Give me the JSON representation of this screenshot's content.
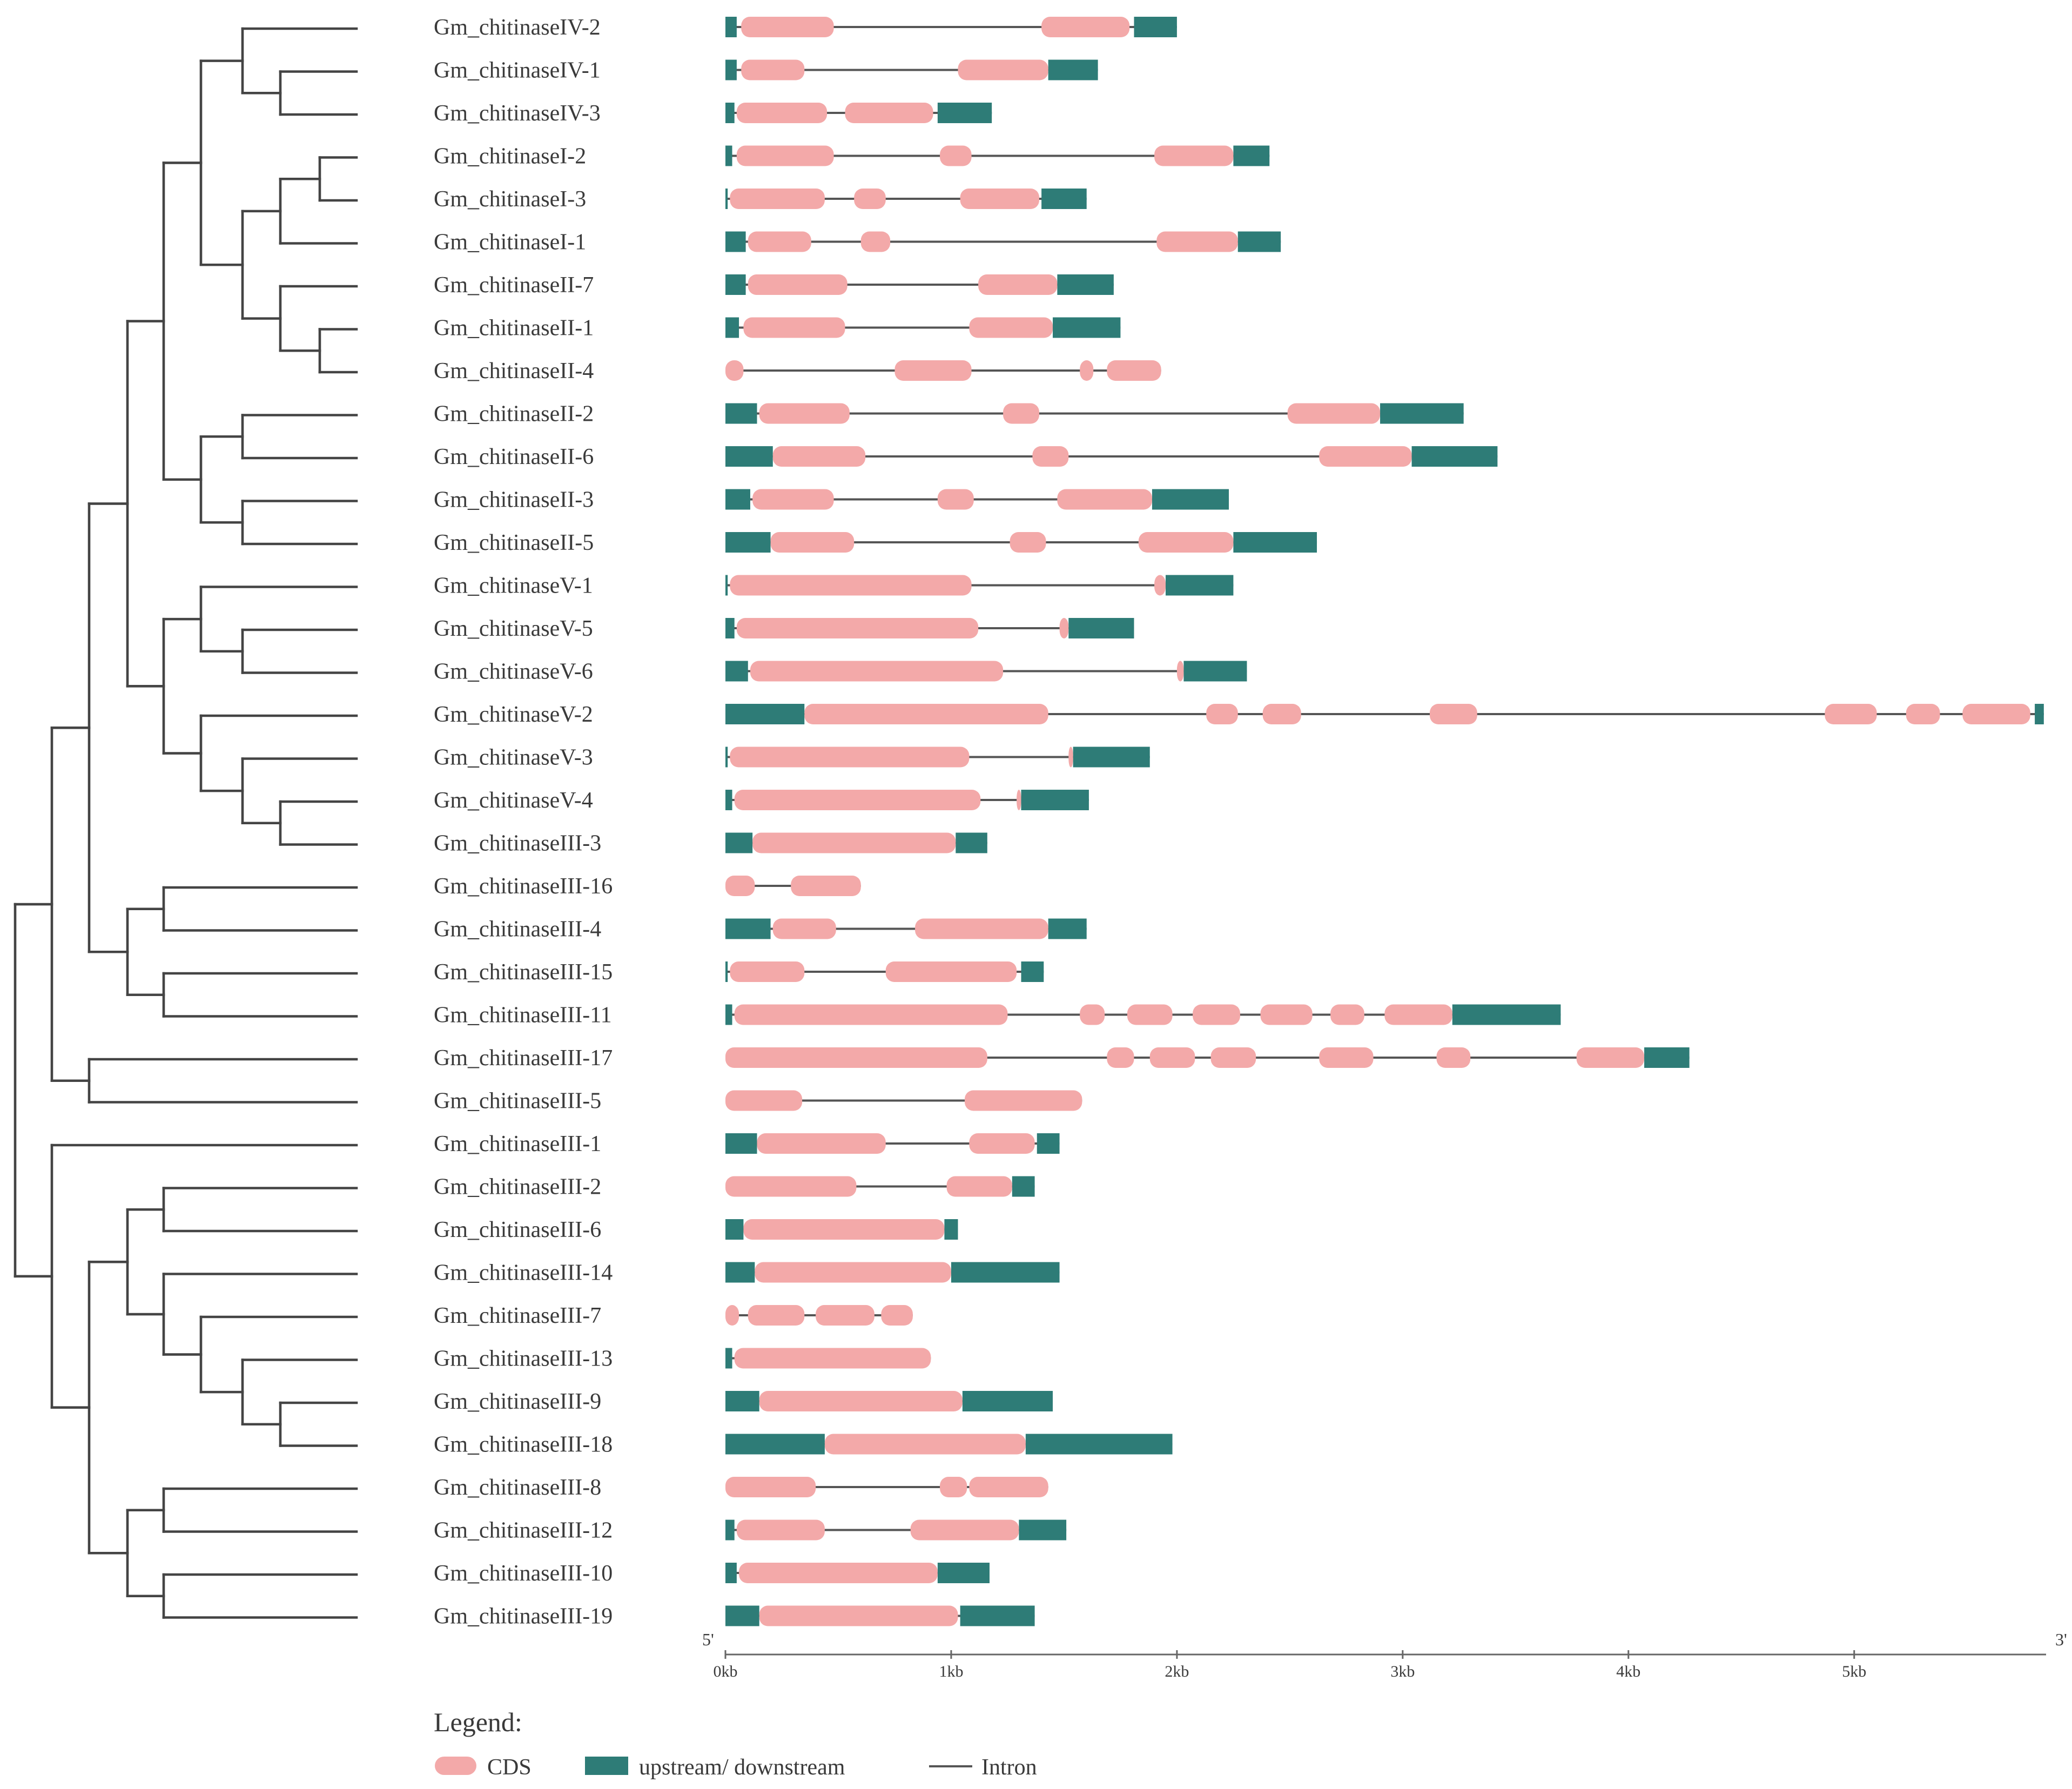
{
  "colors": {
    "cds": "#F3A9A9",
    "utr": "#2E7C77",
    "intron": "#555555",
    "tree": "#444444",
    "text": "#3a3a3a"
  },
  "genes": [
    {
      "name": "Gm_chitinaseIV-2",
      "utr5": [
        0,
        0.05
      ],
      "cds": [
        [
          0.07,
          0.48
        ],
        [
          1.4,
          1.79
        ]
      ],
      "utr3": [
        1.81,
        2.0
      ]
    },
    {
      "name": "Gm_chitinaseIV-1",
      "utr5": [
        0,
        0.05
      ],
      "cds": [
        [
          0.07,
          0.35
        ],
        [
          1.03,
          1.43
        ]
      ],
      "utr3": [
        1.43,
        1.65
      ]
    },
    {
      "name": "Gm_chitinaseIV-3",
      "utr5": [
        0,
        0.04
      ],
      "cds": [
        [
          0.05,
          0.45
        ],
        [
          0.53,
          0.92
        ]
      ],
      "utr3": [
        0.94,
        1.18
      ]
    },
    {
      "name": "Gm_chitinaseI-2",
      "utr5": [
        0,
        0.03
      ],
      "cds": [
        [
          0.05,
          0.48
        ],
        [
          0.95,
          1.09
        ],
        [
          1.9,
          2.25
        ]
      ],
      "utr3": [
        2.25,
        2.41
      ]
    },
    {
      "name": "Gm_chitinaseI-3",
      "utr5": [
        0,
        0.01
      ],
      "cds": [
        [
          0.02,
          0.44
        ],
        [
          0.57,
          0.71
        ],
        [
          1.04,
          1.39
        ]
      ],
      "utr3": [
        1.4,
        1.6
      ]
    },
    {
      "name": "Gm_chitinaseI-1",
      "utr5": [
        0,
        0.09
      ],
      "cds": [
        [
          0.1,
          0.38
        ],
        [
          0.6,
          0.73
        ],
        [
          1.91,
          2.27
        ]
      ],
      "utr3": [
        2.27,
        2.46
      ]
    },
    {
      "name": "Gm_chitinaseII-7",
      "utr5": [
        0,
        0.09
      ],
      "cds": [
        [
          0.1,
          0.54
        ],
        [
          1.12,
          1.47
        ]
      ],
      "utr3": [
        1.47,
        1.72
      ]
    },
    {
      "name": "Gm_chitinaseII-1",
      "utr5": [
        0,
        0.06
      ],
      "cds": [
        [
          0.08,
          0.53
        ],
        [
          1.08,
          1.45
        ]
      ],
      "utr3": [
        1.45,
        1.75
      ]
    },
    {
      "name": "Gm_chitinaseII-4",
      "utr5": null,
      "cds": [
        [
          0.0,
          0.08
        ],
        [
          0.75,
          1.09
        ],
        [
          1.57,
          1.63
        ],
        [
          1.69,
          1.93
        ]
      ],
      "utr3": null
    },
    {
      "name": "Gm_chitinaseII-2",
      "utr5": [
        0,
        0.14
      ],
      "cds": [
        [
          0.15,
          0.55
        ],
        [
          1.23,
          1.39
        ],
        [
          2.49,
          2.9
        ]
      ],
      "utr3": [
        2.9,
        3.27
      ]
    },
    {
      "name": "Gm_chitinaseII-6",
      "utr5": [
        0,
        0.21
      ],
      "cds": [
        [
          0.21,
          0.62
        ],
        [
          1.36,
          1.52
        ],
        [
          2.63,
          3.04
        ]
      ],
      "utr3": [
        3.04,
        3.42
      ]
    },
    {
      "name": "Gm_chitinaseII-3",
      "utr5": [
        0,
        0.11
      ],
      "cds": [
        [
          0.12,
          0.48
        ],
        [
          0.94,
          1.1
        ],
        [
          1.47,
          1.89
        ]
      ],
      "utr3": [
        1.89,
        2.23
      ]
    },
    {
      "name": "Gm_chitinaseII-5",
      "utr5": [
        0,
        0.2
      ],
      "cds": [
        [
          0.2,
          0.57
        ],
        [
          1.26,
          1.42
        ],
        [
          1.83,
          2.25
        ]
      ],
      "utr3": [
        2.25,
        2.62
      ]
    },
    {
      "name": "Gm_chitinaseV-1",
      "utr5": [
        0,
        0.01
      ],
      "cds": [
        [
          0.02,
          1.09
        ],
        [
          1.9,
          1.95
        ]
      ],
      "utr3": [
        1.95,
        2.25
      ]
    },
    {
      "name": "Gm_chitinaseV-5",
      "utr5": [
        0,
        0.04
      ],
      "cds": [
        [
          0.05,
          1.12
        ],
        [
          1.48,
          1.52
        ]
      ],
      "utr3": [
        1.52,
        1.81
      ]
    },
    {
      "name": "Gm_chitinaseV-6",
      "utr5": [
        0,
        0.1
      ],
      "cds": [
        [
          0.11,
          1.23
        ],
        [
          2.0,
          2.03
        ]
      ],
      "utr3": [
        2.03,
        2.31
      ]
    },
    {
      "name": "Gm_chitinaseV-2",
      "utr5": [
        0,
        0.35
      ],
      "cds": [
        [
          0.35,
          1.43
        ],
        [
          2.13,
          2.27
        ],
        [
          2.38,
          2.55
        ],
        [
          3.12,
          3.33
        ],
        [
          4.87,
          5.1
        ],
        [
          5.23,
          5.38
        ],
        [
          5.48,
          5.78
        ]
      ],
      "utr3": [
        5.8,
        5.84
      ]
    },
    {
      "name": "Gm_chitinaseV-3",
      "utr5": [
        0,
        0.01
      ],
      "cds": [
        [
          0.02,
          1.08
        ],
        [
          1.52,
          1.54
        ]
      ],
      "utr3": [
        1.54,
        1.88
      ]
    },
    {
      "name": "Gm_chitinaseV-4",
      "utr5": [
        0,
        0.03
      ],
      "cds": [
        [
          0.04,
          1.13
        ],
        [
          1.29,
          1.31
        ]
      ],
      "utr3": [
        1.31,
        1.61
      ]
    },
    {
      "name": "Gm_chitinaseIII-3",
      "utr5": [
        0,
        0.12
      ],
      "cds": [
        [
          0.12,
          1.02
        ]
      ],
      "utr3": [
        1.02,
        1.16
      ]
    },
    {
      "name": "Gm_chitinaseIII-16",
      "utr5": null,
      "cds": [
        [
          0.0,
          0.13
        ],
        [
          0.29,
          0.6
        ]
      ],
      "utr3": null
    },
    {
      "name": "Gm_chitinaseIII-4",
      "utr5": [
        0,
        0.2
      ],
      "cds": [
        [
          0.21,
          0.49
        ],
        [
          0.84,
          1.43
        ]
      ],
      "utr3": [
        1.43,
        1.6
      ]
    },
    {
      "name": "Gm_chitinaseIII-15",
      "utr5": [
        0,
        0.01
      ],
      "cds": [
        [
          0.02,
          0.35
        ],
        [
          0.71,
          1.29
        ]
      ],
      "utr3": [
        1.31,
        1.41
      ]
    },
    {
      "name": "Gm_chitinaseIII-11",
      "utr5": [
        0,
        0.03
      ],
      "cds": [
        [
          0.04,
          1.25
        ],
        [
          1.57,
          1.68
        ],
        [
          1.78,
          1.98
        ],
        [
          2.07,
          2.28
        ],
        [
          2.37,
          2.6
        ],
        [
          2.68,
          2.83
        ],
        [
          2.92,
          3.22
        ]
      ],
      "utr3": [
        3.22,
        3.7
      ]
    },
    {
      "name": "Gm_chitinaseIII-17",
      "utr5": null,
      "cds": [
        [
          0.0,
          1.16
        ],
        [
          1.69,
          1.81
        ],
        [
          1.88,
          2.08
        ],
        [
          2.15,
          2.35
        ],
        [
          2.63,
          2.87
        ],
        [
          3.15,
          3.3
        ],
        [
          3.77,
          4.07
        ]
      ],
      "utr3": [
        4.07,
        4.27
      ]
    },
    {
      "name": "Gm_chitinaseIII-5",
      "utr5": null,
      "cds": [
        [
          0.0,
          0.34
        ],
        [
          1.06,
          1.58
        ]
      ],
      "utr3": null
    },
    {
      "name": "Gm_chitinaseIII-1",
      "utr5": [
        0,
        0.14
      ],
      "cds": [
        [
          0.14,
          0.71
        ],
        [
          1.08,
          1.37
        ]
      ],
      "utr3": [
        1.38,
        1.48
      ]
    },
    {
      "name": "Gm_chitinaseIII-2",
      "utr5": null,
      "cds": [
        [
          0.0,
          0.58
        ],
        [
          0.98,
          1.27
        ]
      ],
      "utr3": [
        1.27,
        1.37
      ]
    },
    {
      "name": "Gm_chitinaseIII-6",
      "utr5": [
        0,
        0.08
      ],
      "cds": [
        [
          0.08,
          0.97
        ]
      ],
      "utr3": [
        0.97,
        1.03
      ]
    },
    {
      "name": "Gm_chitinaseIII-14",
      "utr5": [
        0,
        0.13
      ],
      "cds": [
        [
          0.13,
          1.0
        ]
      ],
      "utr3": [
        1.0,
        1.48
      ]
    },
    {
      "name": "Gm_chitinaseIII-7",
      "utr5": null,
      "cds": [
        [
          0.0,
          0.06
        ],
        [
          0.1,
          0.35
        ],
        [
          0.4,
          0.66
        ],
        [
          0.69,
          0.83
        ]
      ],
      "utr3": null
    },
    {
      "name": "Gm_chitinaseIII-13",
      "utr5": [
        0,
        0.03
      ],
      "cds": [
        [
          0.04,
          0.91
        ]
      ],
      "utr3": null
    },
    {
      "name": "Gm_chitinaseIII-9",
      "utr5": [
        0,
        0.15
      ],
      "cds": [
        [
          0.15,
          1.05
        ]
      ],
      "utr3": [
        1.05,
        1.45
      ]
    },
    {
      "name": "Gm_chitinaseIII-18",
      "utr5": [
        0,
        0.44
      ],
      "cds": [
        [
          0.44,
          1.33
        ]
      ],
      "utr3": [
        1.33,
        1.98
      ]
    },
    {
      "name": "Gm_chitinaseIII-8",
      "utr5": null,
      "cds": [
        [
          0.0,
          0.4
        ],
        [
          0.95,
          1.07
        ],
        [
          1.08,
          1.43
        ]
      ],
      "utr3": null
    },
    {
      "name": "Gm_chitinaseIII-12",
      "utr5": [
        0,
        0.04
      ],
      "cds": [
        [
          0.05,
          0.44
        ],
        [
          0.82,
          1.3
        ]
      ],
      "utr3": [
        1.3,
        1.51
      ]
    },
    {
      "name": "Gm_chitinaseIII-10",
      "utr5": [
        0,
        0.05
      ],
      "cds": [
        [
          0.06,
          0.94
        ]
      ],
      "utr3": [
        0.94,
        1.17
      ]
    },
    {
      "name": "Gm_chitinaseIII-19",
      "utr5": [
        0,
        0.15
      ],
      "cds": [
        [
          0.15,
          1.03
        ]
      ],
      "utr3": [
        1.04,
        1.37
      ]
    }
  ],
  "tree": {
    "children": [
      {
        "children": [
          {
            "children": [
              {
                "children": [
                  {
                    "children": [
                      {
                        "children": [
                          {
                            "children": [
                              {
                                "leaf": 0
                              },
                              {
                                "children": [
                                  {
                                    "leaf": 1
                                  },
                                  {
                                    "leaf": 2
                                  }
                                ]
                              }
                            ]
                          },
                          {
                            "children": [
                              {
                                "children": [
                                  {
                                    "children": [
                                      {
                                        "leaf": 3
                                      },
                                      {
                                        "leaf": 4
                                      }
                                    ]
                                  },
                                  {
                                    "leaf": 5
                                  }
                                ]
                              },
                              {
                                "children": [
                                  {
                                    "leaf": 6
                                  },
                                  {
                                    "children": [
                                      {
                                        "leaf": 7
                                      },
                                      {
                                        "leaf": 8
                                      }
                                    ]
                                  }
                                ]
                              }
                            ]
                          }
                        ]
                      },
                      {
                        "children": [
                          {
                            "children": [
                              {
                                "leaf": 9
                              },
                              {
                                "leaf": 10
                              }
                            ]
                          },
                          {
                            "children": [
                              {
                                "leaf": 11
                              },
                              {
                                "leaf": 12
                              }
                            ]
                          }
                        ]
                      }
                    ]
                  },
                  {
                    "children": [
                      {
                        "children": [
                          {
                            "leaf": 13
                          },
                          {
                            "children": [
                              {
                                "leaf": 14
                              },
                              {
                                "leaf": 15
                              }
                            ]
                          }
                        ]
                      },
                      {
                        "children": [
                          {
                            "leaf": 16
                          },
                          {
                            "children": [
                              {
                                "leaf": 17
                              },
                              {
                                "children": [
                                  {
                                    "leaf": 18
                                  },
                                  {
                                    "leaf": 19
                                  }
                                ]
                              }
                            ]
                          }
                        ]
                      }
                    ]
                  }
                ]
              },
              {
                "children": [
                  {
                    "children": [
                      {
                        "leaf": 20
                      },
                      {
                        "leaf": 21
                      }
                    ]
                  },
                  {
                    "children": [
                      {
                        "leaf": 22
                      },
                      {
                        "leaf": 23
                      }
                    ]
                  }
                ]
              }
            ]
          },
          {
            "children": [
              {
                "leaf": 24
              },
              {
                "leaf": 25
              }
            ]
          }
        ]
      },
      {
        "children": [
          {
            "leaf": 26
          },
          {
            "children": [
              {
                "children": [
                  {
                    "children": [
                      {
                        "leaf": 27
                      },
                      {
                        "leaf": 28
                      }
                    ]
                  },
                  {
                    "children": [
                      {
                        "leaf": 29
                      },
                      {
                        "children": [
                          {
                            "leaf": 30
                          },
                          {
                            "children": [
                              {
                                "leaf": 31
                              },
                              {
                                "children": [
                                  {
                                    "leaf": 32
                                  },
                                  {
                                    "leaf": 33
                                  }
                                ]
                              }
                            ]
                          }
                        ]
                      }
                    ]
                  }
                ]
              },
              {
                "children": [
                  {
                    "children": [
                      {
                        "leaf": 34
                      },
                      {
                        "leaf": 35
                      }
                    ]
                  },
                  {
                    "children": [
                      {
                        "leaf": 36
                      },
                      {
                        "leaf": 37
                      }
                    ]
                  }
                ]
              }
            ]
          }
        ]
      }
    ]
  },
  "axis": {
    "min_kb": 0,
    "max_kb": 5.85,
    "five_prime": "5'",
    "three_prime": "3'",
    "ticks": [
      {
        "value": 0,
        "label": "0kb"
      },
      {
        "value": 1,
        "label": "1kb"
      },
      {
        "value": 2,
        "label": "2kb"
      },
      {
        "value": 3,
        "label": "3kb"
      },
      {
        "value": 4,
        "label": "4kb"
      },
      {
        "value": 5,
        "label": "5kb"
      }
    ]
  },
  "legend": {
    "title": "Legend:",
    "cds": "CDS",
    "utr": "upstream/ downstream",
    "intron": "Intron"
  }
}
